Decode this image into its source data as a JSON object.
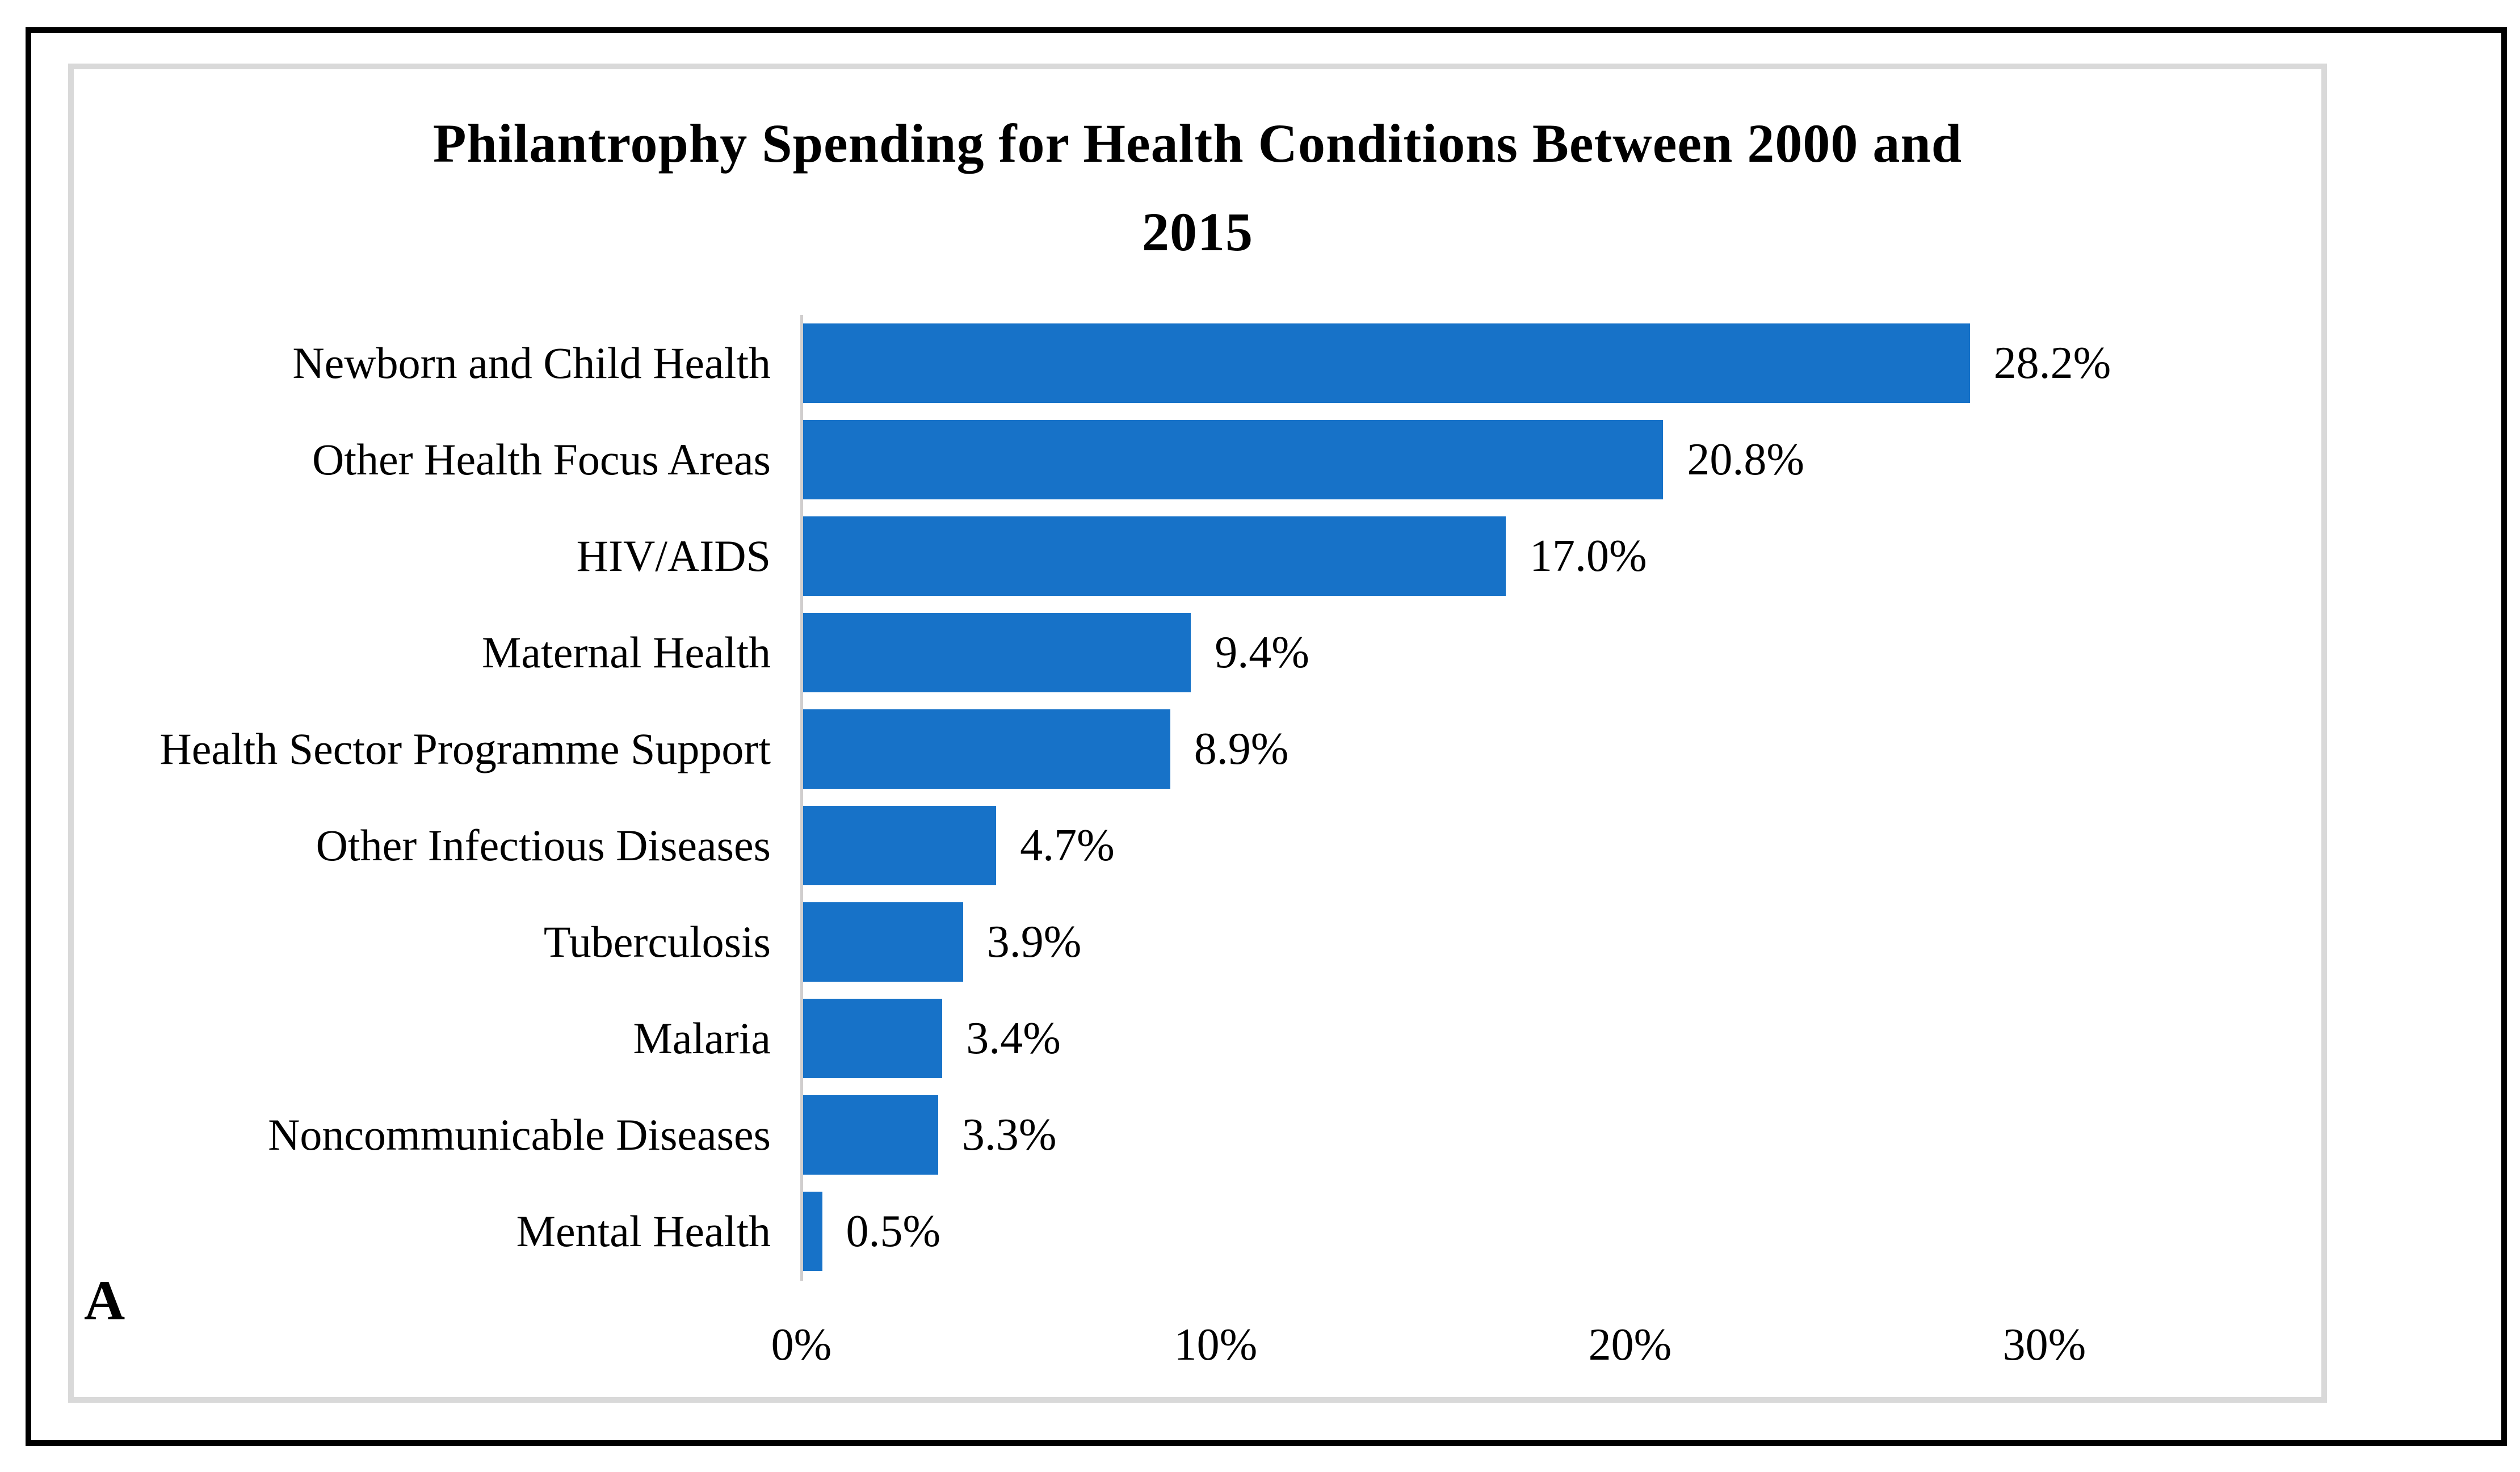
{
  "panel_label": "A",
  "chart_data": {
    "type": "bar",
    "orientation": "horizontal",
    "title": "Philantrophy Spending for Health Conditions Between 2000 and 2015",
    "title_lines": [
      "Philantrophy Spending for Health Conditions Between 2000 and",
      "2015"
    ],
    "categories": [
      "Newborn and Child Health",
      "Other Health Focus Areas",
      "HIV/AIDS",
      "Maternal Health",
      "Health Sector Programme Support",
      "Other Infectious Diseases",
      "Tuberculosis",
      "Malaria",
      "Noncommunicable Diseases",
      "Mental Health"
    ],
    "values": [
      28.2,
      20.8,
      17.0,
      9.4,
      8.9,
      4.7,
      3.9,
      3.4,
      3.3,
      0.5
    ],
    "value_labels": [
      "28.2%",
      "20.8%",
      "17.0%",
      "9.4%",
      "8.9%",
      "4.7%",
      "3.9%",
      "3.4%",
      "3.3%",
      "0.5%"
    ],
    "xlabel": "",
    "ylabel": "",
    "x_ticks": [
      "0%",
      "10%",
      "20%",
      "30%"
    ],
    "x_tick_values": [
      0,
      10,
      20,
      30
    ],
    "xlim": [
      0,
      35
    ],
    "grid": "off",
    "legend": "none",
    "bar_color": "#1772C8",
    "axis_color": "#D0CECE",
    "chart_border_color": "#D9D9D9",
    "outer_border_color": "#000000"
  }
}
